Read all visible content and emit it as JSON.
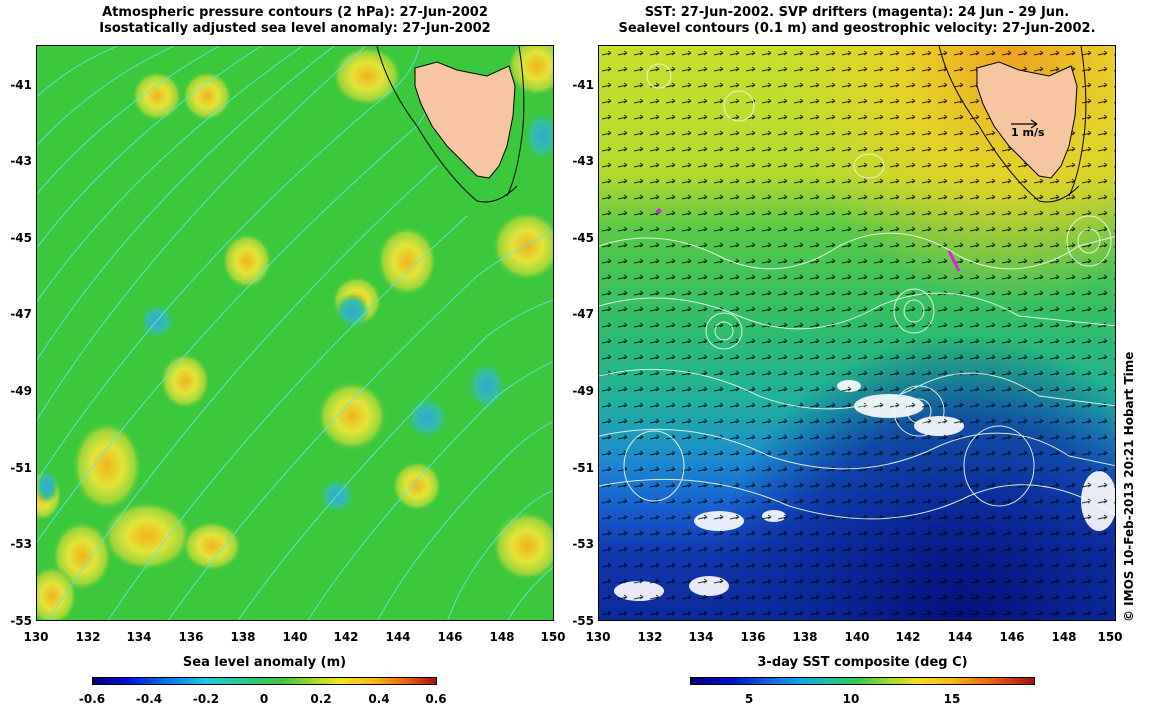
{
  "left_panel": {
    "title_line1": "Atmospheric pressure contours (2 hPa): 27-Jun-2002",
    "title_line2": "Isostatically adjusted sea level anomaly: 27-Jun-2002",
    "colorbar_label": "Sea level anomaly (m)",
    "colorbar_ticks": [
      "-0.6",
      "-0.4",
      "-0.2",
      "0",
      "0.2",
      "0.4",
      "0.6"
    ]
  },
  "right_panel": {
    "title_line1": "SST: 27-Jun-2002. SVP drifters (magenta): 24 Jun - 29 Jun.",
    "title_line2": "Sealevel contours (0.1 m) and geostrophic velocity: 27-Jun-2002.",
    "colorbar_label": "3-day SST composite (deg C)",
    "colorbar_ticks": [
      "5",
      "10",
      "15"
    ],
    "velocity_scale_label": "1 m/s"
  },
  "axes": {
    "lat_ticks": [
      "-41",
      "-43",
      "-45",
      "-47",
      "-49",
      "-51",
      "-53",
      "-55"
    ],
    "lon_ticks": [
      "130",
      "132",
      "134",
      "136",
      "138",
      "140",
      "142",
      "144",
      "146",
      "148",
      "150"
    ]
  },
  "credit": "© IMOS 10-Feb-2013 20:21 Hobart Time",
  "colors": {
    "land": "#f7c6a0",
    "sla_background": "#3cc83c",
    "cold_sst": "#0a2a9a",
    "contour_cyan": "#5fe8e8",
    "drifter_magenta": "#e020e0"
  }
}
